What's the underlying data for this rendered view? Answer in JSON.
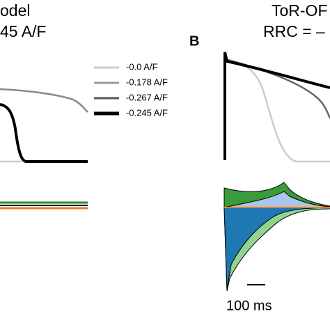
{
  "panel_a": {
    "title_line1": "odel",
    "title_line2": "45 A/F"
  },
  "panel_b": {
    "letter": "B",
    "title_line1": "ToR-OF",
    "title_line2": "RRC = –",
    "scale_bar": "100 ms"
  },
  "legend": [
    {
      "label": "-0.0 A/F",
      "color": "#cccccc"
    },
    {
      "label": "-0.178 A/F",
      "color": "#999999"
    },
    {
      "label": "-0.267 A/F",
      "color": "#555555"
    },
    {
      "label": "-0.245 A/F",
      "color": "#000000"
    }
  ]
}
